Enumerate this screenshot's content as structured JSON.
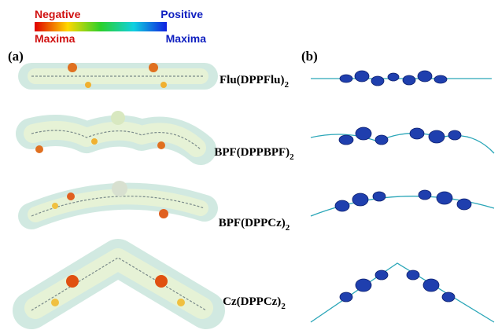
{
  "legend": {
    "negative_label": "Negative",
    "positive_label": "Positive",
    "min_label": "Maxima",
    "max_label": "Maxima"
  },
  "panels": [
    {
      "label": "(a)"
    },
    {
      "label": "(b)"
    }
  ],
  "molecules": [
    {
      "name": "Flu(DPPFlu)",
      "subscript": "2"
    },
    {
      "name": "BPF(DPPBPF)",
      "subscript": "2"
    },
    {
      "name": "BPF(DPPCz)",
      "subscript": "2"
    },
    {
      "name": "Cz(DPPCz)",
      "subscript": "2"
    }
  ]
}
